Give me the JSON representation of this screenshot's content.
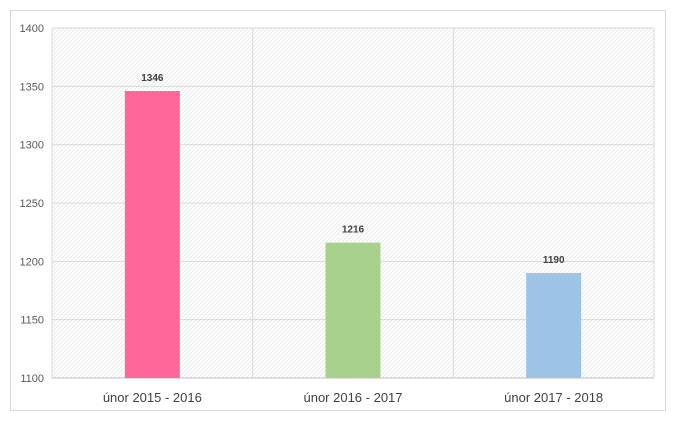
{
  "chart_data": {
    "type": "bar",
    "title": "",
    "xlabel": "",
    "ylabel": "",
    "categories": [
      "únor 2015 - 2016",
      "únor 2016 - 2017",
      "únor 2017 - 2018"
    ],
    "values": [
      1346,
      1216,
      1190
    ],
    "data_labels": [
      "1346",
      "1216",
      "1190"
    ],
    "bar_colors": [
      "#ff6699",
      "#a9d18e",
      "#9dc3e6"
    ],
    "ylim": [
      1100,
      1400
    ],
    "yticks": [
      1100,
      1150,
      1200,
      1250,
      1300,
      1350,
      1400
    ],
    "ytick_labels": [
      "1100",
      "1150",
      "1200",
      "1250",
      "1300",
      "1350",
      "1400"
    ],
    "grid": true,
    "plot_background": "diagonal-hatch",
    "legend": "none"
  }
}
